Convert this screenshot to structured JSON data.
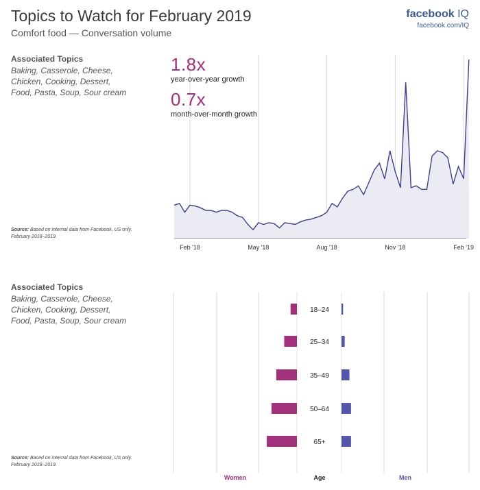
{
  "header": {
    "title": "Topics to Watch for February 2019",
    "subtitle": "Comfort food — Conversation volume",
    "brand_name": "facebook",
    "brand_suffix": "IQ",
    "brand_url": "facebook.com/IQ"
  },
  "panel_top": {
    "topics_heading": "Associated Topics",
    "topics_text": "Baking, Casserole, Cheese, Chicken, Cooking, Dessert, Food, Pasta, Soup, Sour cream",
    "source_label": "Source:",
    "source_text": "Based on internal data from Facebook, US only. February 2018–2019.",
    "stat1_value": "1.8x",
    "stat1_label": "year-over-year growth",
    "stat2_value": "0.7x",
    "stat2_label": "month-over-month growth"
  },
  "panel_bottom": {
    "topics_heading": "Associated Topics",
    "topics_text": "Baking, Casserole, Cheese, Chicken, Cooking, Dessert, Food, Pasta, Soup, Sour cream",
    "source_label": "Source:",
    "source_text": "Based on internal data from Facebook, US only. February 2018–2019."
  },
  "colors": {
    "line": "#3d3f8e",
    "area": "#ebebf4",
    "women": "#a3307b",
    "men": "#5356ad",
    "grid": "#d9d9d9"
  },
  "chart_data": [
    {
      "type": "area",
      "title": "Comfort food — Conversation volume",
      "xlabel": "",
      "ylabel": "",
      "x_ticks": [
        "Feb '18",
        "May '18",
        "Aug '18",
        "Nov '18",
        "Feb '19"
      ],
      "x_tick_positions": [
        3,
        16,
        29,
        42,
        55
      ],
      "x_range": [
        0,
        55.5
      ],
      "ylim": [
        0,
        100
      ],
      "values": [
        19,
        20,
        15,
        19,
        18.5,
        17.5,
        16,
        16,
        15,
        16,
        16,
        15,
        13,
        12,
        8,
        5,
        9,
        8,
        9,
        8.5,
        6,
        9,
        8.5,
        8,
        9.5,
        10.5,
        11,
        12,
        13,
        15,
        20,
        18,
        23,
        27,
        28,
        30,
        25,
        32,
        39,
        43,
        34,
        50,
        38,
        29,
        89,
        29,
        30,
        28,
        28,
        47,
        50,
        49,
        46,
        31,
        41,
        34,
        102
      ]
    },
    {
      "type": "bar",
      "orientation": "horizontal-butterfly",
      "categories": [
        "18–24",
        "25–34",
        "35–49",
        "50–64",
        "65+"
      ],
      "series": [
        {
          "name": "Women",
          "values": [
            4,
            8,
            13,
            16,
            19
          ]
        },
        {
          "name": "Men",
          "values": [
            1,
            2,
            5,
            6,
            6
          ]
        }
      ],
      "center_label": "Age",
      "left_label": "Women",
      "right_label": "Men"
    }
  ]
}
